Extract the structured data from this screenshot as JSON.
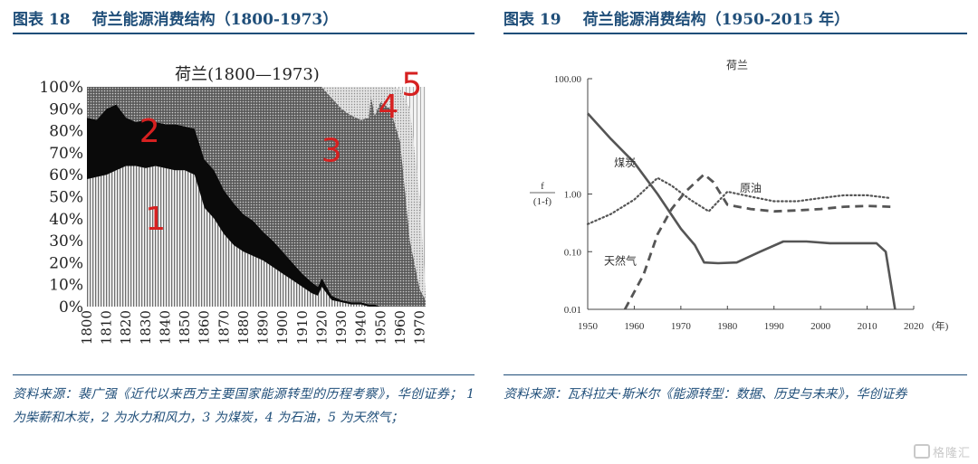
{
  "figures": [
    {
      "number": "图表 18",
      "title": "荷兰能源消费结构（1800-1973）",
      "source_label": "资料来源：",
      "source": "裴广强《近代以来西方主要国家能源转型的历程考察》，华创证券；  1 为柴薪和木炭，2 为水力和风力，3 为煤炭，4 为石油，5 为天然气；"
    },
    {
      "number": "图表 19",
      "title": "荷兰能源消费结构（1950-2015 年）",
      "source_label": "资料来源：",
      "source": "瓦科拉夫·斯米尔《能源转型：数据、历史与未来》，华创证券"
    }
  ],
  "chart_data": [
    {
      "type": "area",
      "title": "荷兰(1800—1973)",
      "stacked": true,
      "xlim": [
        1800,
        1973
      ],
      "ylim": [
        0,
        100
      ],
      "x_ticks": [
        "1800",
        "1810",
        "1820",
        "1830",
        "1840",
        "1850",
        "1860",
        "1870",
        "1880",
        "1890",
        "1900",
        "1910",
        "1920",
        "1930",
        "1940",
        "1950",
        "1960",
        "1970"
      ],
      "y_ticks": [
        "0%",
        "10%",
        "20%",
        "30%",
        "40%",
        "50%",
        "60%",
        "70%",
        "80%",
        "90%",
        "100%"
      ],
      "x": [
        1800,
        1805,
        1810,
        1815,
        1820,
        1825,
        1830,
        1835,
        1840,
        1845,
        1850,
        1855,
        1860,
        1865,
        1870,
        1875,
        1880,
        1885,
        1890,
        1895,
        1900,
        1905,
        1910,
        1915,
        1918,
        1920,
        1925,
        1930,
        1935,
        1940,
        1944,
        1945,
        1947,
        1950,
        1955,
        1960,
        1965,
        1970,
        1973
      ],
      "series": [
        {
          "name": "1",
          "color": "#f4f4f4",
          "pattern": "vlines",
          "values": [
            58,
            59,
            60,
            62,
            64,
            64,
            63,
            64,
            63,
            62,
            62,
            60,
            45,
            40,
            33,
            28,
            25,
            23,
            21,
            18,
            15,
            12,
            9,
            6,
            5,
            9,
            3,
            2,
            1,
            1,
            0,
            0,
            0,
            0,
            0,
            0,
            0,
            0,
            0
          ]
        },
        {
          "name": "2",
          "color": "#0a0a0a",
          "pattern": "solid",
          "values": [
            28,
            26,
            30,
            30,
            22,
            20,
            22,
            20,
            20,
            21,
            20,
            21,
            22,
            22,
            20,
            19,
            17,
            16,
            13,
            12,
            10,
            8,
            6,
            5,
            4,
            4,
            2,
            1,
            1,
            1,
            1,
            1,
            1,
            0,
            0,
            0,
            0,
            0,
            0
          ]
        },
        {
          "name": "3",
          "color": "#8a8a8a",
          "pattern": "dots-dense",
          "values": [
            14,
            15,
            10,
            8,
            14,
            16,
            15,
            16,
            17,
            17,
            18,
            19,
            33,
            38,
            47,
            53,
            58,
            61,
            66,
            70,
            75,
            80,
            85,
            89,
            91,
            87,
            90,
            87,
            85,
            83,
            85,
            95,
            86,
            93,
            90,
            75,
            30,
            8,
            3
          ]
        },
        {
          "name": "4",
          "color": "#c4c4c4",
          "pattern": "dots-light",
          "values": [
            0,
            0,
            0,
            0,
            0,
            0,
            0,
            0,
            0,
            0,
            0,
            0,
            0,
            0,
            0,
            0,
            0,
            0,
            0,
            0,
            0,
            0,
            0,
            0,
            0,
            0,
            5,
            10,
            13,
            15,
            14,
            4,
            13,
            7,
            10,
            24,
            60,
            42,
            3
          ]
        },
        {
          "name": "5",
          "color": "#eeeeee",
          "pattern": "vlines-thin",
          "values": [
            0,
            0,
            0,
            0,
            0,
            0,
            0,
            0,
            0,
            0,
            0,
            0,
            0,
            0,
            0,
            0,
            0,
            0,
            0,
            0,
            0,
            0,
            0,
            0,
            0,
            0,
            0,
            0,
            0,
            0,
            0,
            0,
            0,
            0,
            0,
            1,
            10,
            50,
            94
          ]
        }
      ],
      "annotations": [
        {
          "text": "1",
          "x": 1835,
          "y": 35,
          "color": "#d62020"
        },
        {
          "text": "2",
          "x": 1832,
          "y": 75,
          "color": "#d62020"
        },
        {
          "text": "3",
          "x": 1925,
          "y": 66,
          "color": "#d62020"
        },
        {
          "text": "4",
          "x": 1954,
          "y": 86,
          "color": "#d62020"
        },
        {
          "text": "5",
          "x": 1966,
          "y": 96,
          "color": "#d62020"
        }
      ]
    },
    {
      "type": "line",
      "title": "荷兰",
      "ylabel_top": "f",
      "ylabel_bottom": "(1-f)",
      "xlabel_suffix": "(年)",
      "yscale": "log",
      "xlim": [
        1950,
        2020
      ],
      "ylim": [
        0.01,
        100
      ],
      "x_ticks": [
        1950,
        1960,
        1970,
        1980,
        1990,
        2000,
        2010,
        2020
      ],
      "y_ticks": [
        "0.01",
        "0.10",
        "1.00",
        "100.00"
      ],
      "series": [
        {
          "name": "煤炭",
          "style": "solid",
          "x": [
            1950,
            1955,
            1960,
            1965,
            1970,
            1973,
            1975,
            1978,
            1982,
            1987,
            1992,
            1997,
            2002,
            2007,
            2012,
            2014,
            2016
          ],
          "y": [
            25,
            9,
            3.5,
            1,
            0.25,
            0.13,
            0.065,
            0.063,
            0.065,
            0.1,
            0.15,
            0.15,
            0.14,
            0.14,
            0.14,
            0.1,
            0.01
          ]
        },
        {
          "name": "原油",
          "style": "dotted",
          "x": [
            1950,
            1955,
            1960,
            1965,
            1968,
            1972,
            1976,
            1980,
            1985,
            1990,
            1995,
            2000,
            2005,
            2010,
            2015
          ],
          "y": [
            0.3,
            0.45,
            0.8,
            1.9,
            1.4,
            0.8,
            0.5,
            1.1,
            0.9,
            0.75,
            0.75,
            0.85,
            0.95,
            0.95,
            0.85
          ]
        },
        {
          "name": "天然气",
          "style": "dashed",
          "x": [
            1958,
            1962,
            1965,
            1968,
            1971,
            1975,
            1977,
            1980,
            1985,
            1990,
            1995,
            2000,
            2005,
            2010,
            2015
          ],
          "y": [
            0.01,
            0.04,
            0.2,
            0.55,
            1.1,
            2.2,
            1.6,
            0.65,
            0.55,
            0.5,
            0.52,
            0.55,
            0.6,
            0.62,
            0.6
          ]
        }
      ],
      "annotations": [
        {
          "text": "煤炭",
          "x": 1958,
          "y": 3.0
        },
        {
          "text": "原油",
          "x": 1985,
          "y": 1.1
        },
        {
          "text": "天然气",
          "x": 1957,
          "y": 0.06
        }
      ]
    }
  ],
  "watermark": "格隆汇"
}
